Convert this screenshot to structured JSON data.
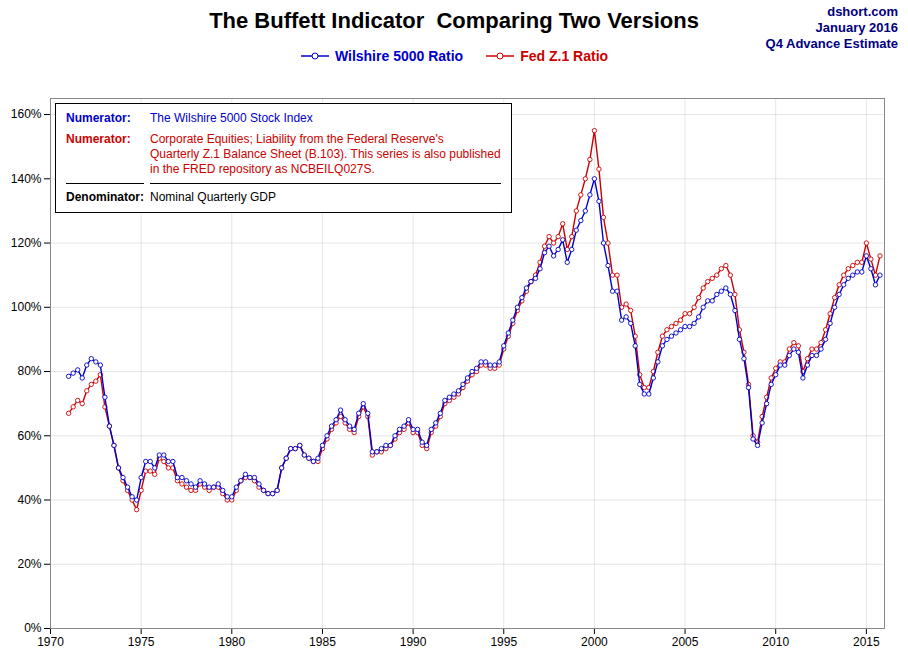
{
  "chart_data": {
    "type": "line",
    "title": "The Buffett Indicator  Comparing Two Versions",
    "x": [
      1971,
      1971.25,
      1971.5,
      1971.75,
      1972,
      1972.25,
      1972.5,
      1972.75,
      1973,
      1973.25,
      1973.5,
      1973.75,
      1974,
      1974.25,
      1974.5,
      1974.75,
      1975,
      1975.25,
      1975.5,
      1975.75,
      1976,
      1976.25,
      1976.5,
      1976.75,
      1977,
      1977.25,
      1977.5,
      1977.75,
      1978,
      1978.25,
      1978.5,
      1978.75,
      1979,
      1979.25,
      1979.5,
      1979.75,
      1980,
      1980.25,
      1980.5,
      1980.75,
      1981,
      1981.25,
      1981.5,
      1981.75,
      1982,
      1982.25,
      1982.5,
      1982.75,
      1983,
      1983.25,
      1983.5,
      1983.75,
      1984,
      1984.25,
      1984.5,
      1984.75,
      1985,
      1985.25,
      1985.5,
      1985.75,
      1986,
      1986.25,
      1986.5,
      1986.75,
      1987,
      1987.25,
      1987.5,
      1987.75,
      1988,
      1988.25,
      1988.5,
      1988.75,
      1989,
      1989.25,
      1989.5,
      1989.75,
      1990,
      1990.25,
      1990.5,
      1990.75,
      1991,
      1991.25,
      1991.5,
      1991.75,
      1992,
      1992.25,
      1992.5,
      1992.75,
      1993,
      1993.25,
      1993.5,
      1993.75,
      1994,
      1994.25,
      1994.5,
      1994.75,
      1995,
      1995.25,
      1995.5,
      1995.75,
      1996,
      1996.25,
      1996.5,
      1996.75,
      1997,
      1997.25,
      1997.5,
      1997.75,
      1998,
      1998.25,
      1998.5,
      1998.75,
      1999,
      1999.25,
      1999.5,
      1999.75,
      2000,
      2000.25,
      2000.5,
      2000.75,
      2001,
      2001.25,
      2001.5,
      2001.75,
      2002,
      2002.25,
      2002.5,
      2002.75,
      2003,
      2003.25,
      2003.5,
      2003.75,
      2004,
      2004.25,
      2004.5,
      2004.75,
      2005,
      2005.25,
      2005.5,
      2005.75,
      2006,
      2006.25,
      2006.5,
      2006.75,
      2007,
      2007.25,
      2007.5,
      2007.75,
      2008,
      2008.25,
      2008.5,
      2008.75,
      2009,
      2009.25,
      2009.5,
      2009.75,
      2010,
      2010.25,
      2010.5,
      2010.75,
      2011,
      2011.25,
      2011.5,
      2011.75,
      2012,
      2012.25,
      2012.5,
      2012.75,
      2013,
      2013.25,
      2013.5,
      2013.75,
      2014,
      2014.25,
      2014.5,
      2014.75,
      2015,
      2015.25,
      2015.5,
      2015.75
    ],
    "series": [
      {
        "name": "Wilshire 5000 Ratio",
        "color": "#0000CC",
        "values": [
          0.785,
          0.795,
          0.805,
          0.78,
          0.82,
          0.84,
          0.83,
          0.82,
          0.72,
          0.63,
          0.57,
          0.5,
          0.47,
          0.44,
          0.41,
          0.4,
          0.47,
          0.52,
          0.52,
          0.5,
          0.54,
          0.54,
          0.52,
          0.52,
          0.47,
          0.47,
          0.46,
          0.45,
          0.44,
          0.46,
          0.45,
          0.44,
          0.44,
          0.45,
          0.43,
          0.41,
          0.41,
          0.44,
          0.46,
          0.48,
          0.47,
          0.47,
          0.45,
          0.43,
          0.42,
          0.42,
          0.43,
          0.5,
          0.53,
          0.56,
          0.56,
          0.57,
          0.54,
          0.53,
          0.52,
          0.53,
          0.57,
          0.6,
          0.63,
          0.65,
          0.68,
          0.65,
          0.63,
          0.62,
          0.67,
          0.7,
          0.67,
          0.55,
          0.55,
          0.56,
          0.57,
          0.57,
          0.6,
          0.62,
          0.63,
          0.65,
          0.62,
          0.62,
          0.58,
          0.57,
          0.62,
          0.64,
          0.67,
          0.71,
          0.72,
          0.73,
          0.74,
          0.76,
          0.78,
          0.8,
          0.81,
          0.83,
          0.83,
          0.82,
          0.82,
          0.83,
          0.88,
          0.92,
          0.96,
          1.0,
          1.03,
          1.06,
          1.08,
          1.09,
          1.12,
          1.17,
          1.19,
          1.16,
          1.18,
          1.21,
          1.14,
          1.18,
          1.24,
          1.27,
          1.3,
          1.35,
          1.4,
          1.33,
          1.2,
          1.13,
          1.05,
          1.05,
          0.96,
          0.97,
          0.95,
          0.88,
          0.76,
          0.73,
          0.73,
          0.78,
          0.83,
          0.88,
          0.9,
          0.91,
          0.92,
          0.93,
          0.94,
          0.94,
          0.95,
          0.97,
          1.0,
          1.02,
          1.02,
          1.04,
          1.05,
          1.06,
          1.04,
          0.99,
          0.9,
          0.84,
          0.75,
          0.59,
          0.57,
          0.64,
          0.7,
          0.76,
          0.79,
          0.82,
          0.82,
          0.85,
          0.87,
          0.86,
          0.78,
          0.82,
          0.85,
          0.85,
          0.87,
          0.9,
          0.95,
          1.0,
          1.04,
          1.07,
          1.09,
          1.1,
          1.11,
          1.11,
          1.16,
          1.12,
          1.07,
          1.1
        ]
      },
      {
        "name": "Fed Z.1 Ratio",
        "color": "#CC0000",
        "values": [
          0.67,
          0.69,
          0.71,
          0.7,
          0.74,
          0.76,
          0.77,
          0.79,
          0.69,
          0.63,
          0.57,
          0.5,
          0.46,
          0.43,
          0.4,
          0.37,
          0.43,
          0.49,
          0.49,
          0.48,
          0.53,
          0.52,
          0.5,
          0.5,
          0.46,
          0.45,
          0.44,
          0.43,
          0.43,
          0.45,
          0.44,
          0.43,
          0.44,
          0.44,
          0.42,
          0.4,
          0.4,
          0.43,
          0.46,
          0.47,
          0.47,
          0.46,
          0.44,
          0.43,
          0.42,
          0.42,
          0.43,
          0.5,
          0.53,
          0.56,
          0.56,
          0.57,
          0.54,
          0.53,
          0.52,
          0.52,
          0.56,
          0.59,
          0.62,
          0.64,
          0.66,
          0.64,
          0.62,
          0.61,
          0.66,
          0.69,
          0.66,
          0.54,
          0.55,
          0.55,
          0.56,
          0.57,
          0.59,
          0.61,
          0.62,
          0.64,
          0.61,
          0.61,
          0.57,
          0.56,
          0.61,
          0.63,
          0.66,
          0.7,
          0.71,
          0.72,
          0.73,
          0.75,
          0.77,
          0.79,
          0.8,
          0.82,
          0.82,
          0.81,
          0.81,
          0.82,
          0.87,
          0.91,
          0.95,
          0.99,
          1.02,
          1.05,
          1.08,
          1.1,
          1.14,
          1.19,
          1.22,
          1.2,
          1.22,
          1.26,
          1.18,
          1.22,
          1.3,
          1.35,
          1.4,
          1.46,
          1.55,
          1.43,
          1.28,
          1.2,
          1.1,
          1.1,
          1.0,
          1.01,
          0.99,
          0.91,
          0.79,
          0.75,
          0.75,
          0.8,
          0.86,
          0.91,
          0.93,
          0.94,
          0.95,
          0.96,
          0.98,
          0.98,
          1.0,
          1.03,
          1.06,
          1.08,
          1.09,
          1.1,
          1.12,
          1.13,
          1.1,
          1.04,
          0.93,
          0.86,
          0.76,
          0.6,
          0.58,
          0.66,
          0.72,
          0.78,
          0.81,
          0.83,
          0.83,
          0.87,
          0.89,
          0.88,
          0.8,
          0.84,
          0.87,
          0.87,
          0.89,
          0.93,
          0.98,
          1.03,
          1.07,
          1.1,
          1.12,
          1.13,
          1.14,
          1.14,
          1.2,
          1.15,
          1.1,
          1.16
        ]
      }
    ],
    "xlim": [
      1970,
      2016
    ],
    "ylim": [
      0.0,
      1.65
    ],
    "xticks": [
      1970,
      1975,
      1980,
      1985,
      1990,
      1995,
      2000,
      2005,
      2010,
      2015
    ],
    "yticks": [
      {
        "value": 0.0,
        "label": "0%"
      },
      {
        "value": 0.2,
        "label": "20%"
      },
      {
        "value": 0.4,
        "label": "40%"
      },
      {
        "value": 0.6,
        "label": "60%"
      },
      {
        "value": 0.8,
        "label": "80%"
      },
      {
        "value": 1.0,
        "label": "100%"
      },
      {
        "value": 1.2,
        "label": "120%"
      },
      {
        "value": 1.4,
        "label": "140%"
      },
      {
        "value": 1.6,
        "label": "160%"
      }
    ],
    "grid": true,
    "marker": "circle",
    "legend": "top",
    "annotations": [
      {
        "text": "dshort.com\nJanuary 2016\nQ4 Advance Estimate",
        "color": "#000080"
      },
      {
        "label": "Numerator:",
        "text": "The Wilshire 5000 Stock Index",
        "color": "#0000CC"
      },
      {
        "label": "Numerator:",
        "text": "Corporate Equities; Liability from the Federal Reserve's\nQuarterly Z.1 Balance Sheet (B.103). This series is also published\nin the FRED repository as NCBEILQ027S.",
        "color": "#CC0000"
      },
      {
        "label": "Denominator:",
        "text": "Nominal Quarterly GDP",
        "color": "#000000"
      }
    ]
  }
}
